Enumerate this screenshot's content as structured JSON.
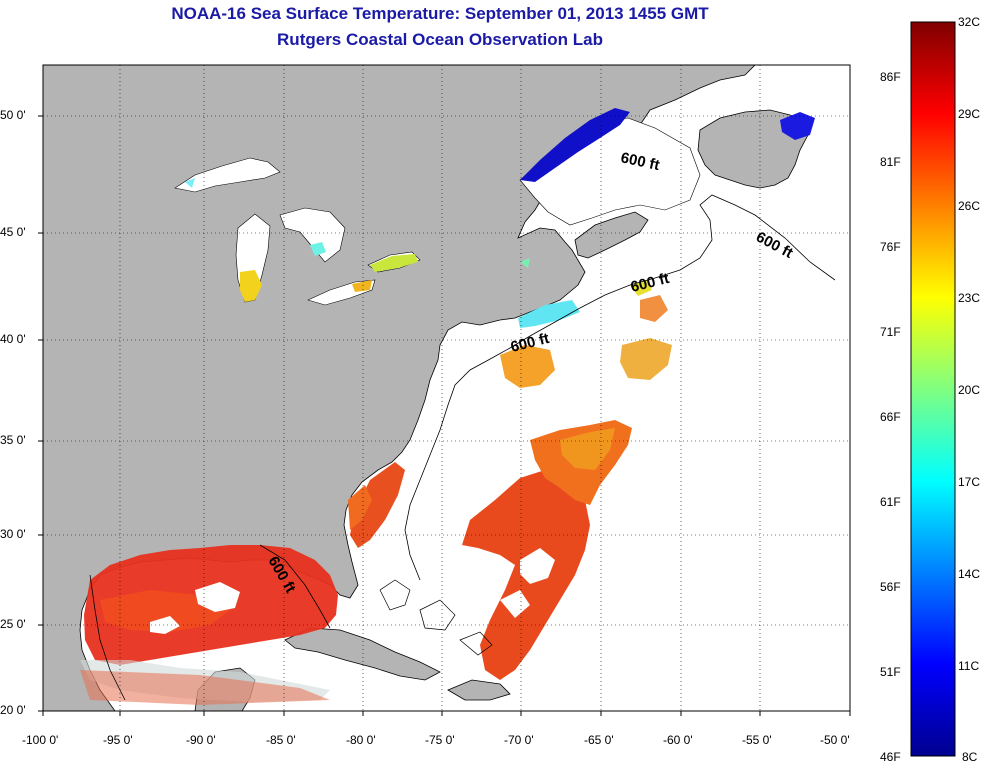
{
  "title": "NOAA-16 Sea Surface Temperature:  September 01, 2013 1455 GMT",
  "subtitle": "Rutgers Coastal Ocean Observation Lab",
  "map": {
    "lon_ticks": [
      "-100 0'",
      "-95 0'",
      "-90 0'",
      "-85 0'",
      "-80 0'",
      "-75 0'",
      "-70 0'",
      "-65 0'",
      "-60 0'",
      "-55 0'",
      "-50 0'"
    ],
    "lat_ticks": [
      "50 0'",
      "45 0'",
      "40 0'",
      "35 0'",
      "30 0'",
      "25 0'",
      "20 0'"
    ],
    "contour_labels": [
      "600 ft",
      "600 ft",
      "600 ft",
      "600 ft",
      "600 ft"
    ],
    "land_color": "#b4b4b4",
    "water_color": "#ffffff"
  },
  "colorbar": {
    "fahrenheit_labels": [
      "86F",
      "81F",
      "76F",
      "71F",
      "66F",
      "61F",
      "56F",
      "51F",
      "46F"
    ],
    "celsius_labels": [
      "32C",
      "29C",
      "26C",
      "23C",
      "20C",
      "17C",
      "14C",
      "11C",
      "8C"
    ],
    "colors": [
      "#00008f",
      "#0000ff",
      "#0080ff",
      "#00ffff",
      "#80ff80",
      "#ffff00",
      "#ff8000",
      "#ff0000",
      "#800000"
    ]
  }
}
